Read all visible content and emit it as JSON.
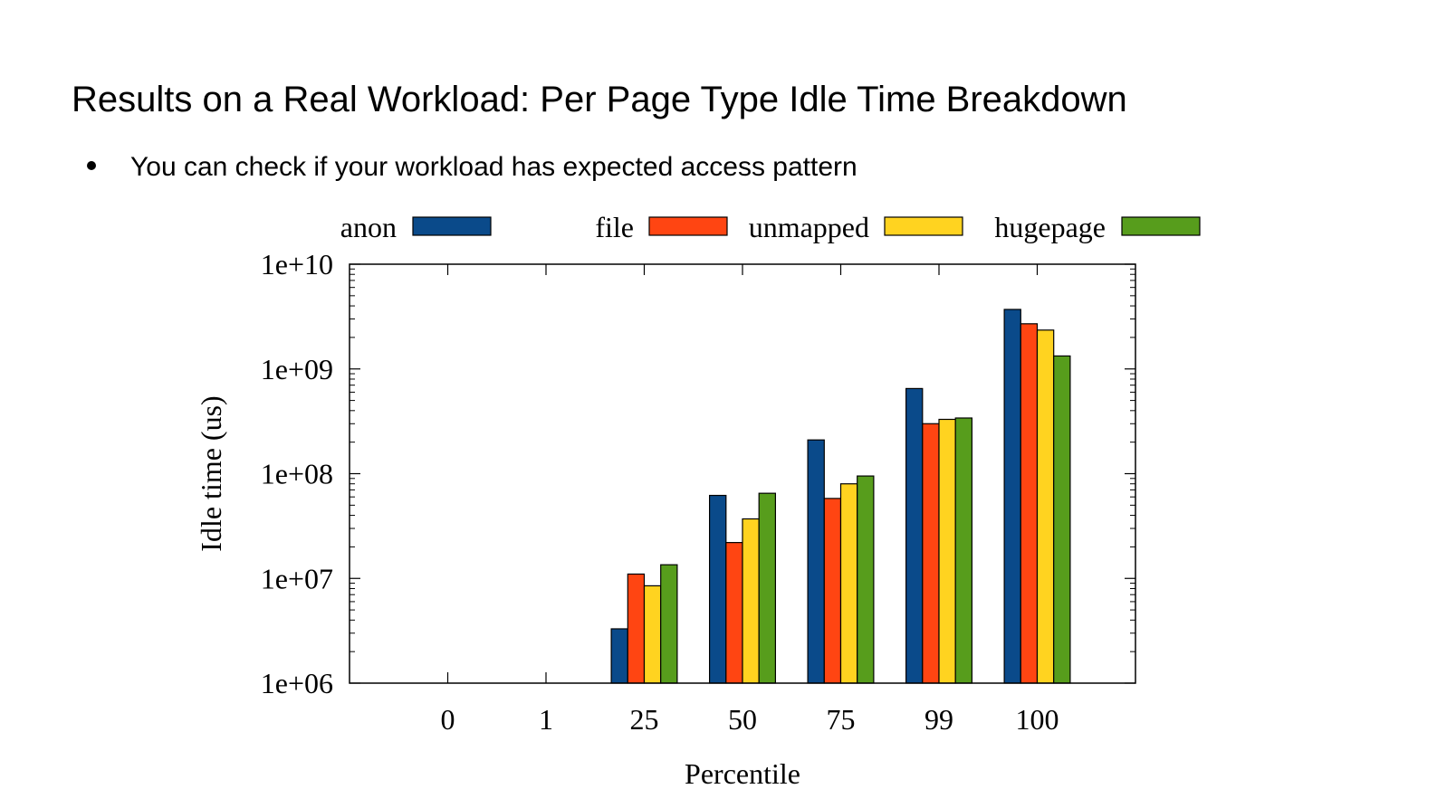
{
  "slide": {
    "title": "Results on a Real Workload: Per Page Type Idle Time Breakdown",
    "bullets": [
      "You can check if your workload has expected access pattern"
    ]
  },
  "chart_data": {
    "type": "bar",
    "log_scale_y": true,
    "xlabel": "Percentile",
    "ylabel": "Idle time (us)",
    "ylim": [
      1000000,
      10000000000
    ],
    "yticks": [
      "1e+06",
      "1e+07",
      "1e+08",
      "1e+09",
      "1e+10"
    ],
    "categories": [
      "0",
      "1",
      "25",
      "50",
      "75",
      "99",
      "100"
    ],
    "legend_position": "top",
    "series": [
      {
        "name": "anon",
        "color": "#0a4a8a",
        "values": [
          null,
          null,
          3300000,
          62000000,
          210000000,
          650000000,
          3700000000
        ]
      },
      {
        "name": "file",
        "color": "#ff4512",
        "values": [
          null,
          null,
          11000000,
          22000000,
          58000000,
          300000000,
          2700000000
        ]
      },
      {
        "name": "unmapped",
        "color": "#ffd320",
        "values": [
          null,
          null,
          8500000,
          37000000,
          80000000,
          330000000,
          2350000000
        ]
      },
      {
        "name": "hugepage",
        "color": "#579d1c",
        "values": [
          null,
          null,
          13500000,
          65000000,
          95000000,
          340000000,
          1330000000
        ]
      }
    ]
  }
}
